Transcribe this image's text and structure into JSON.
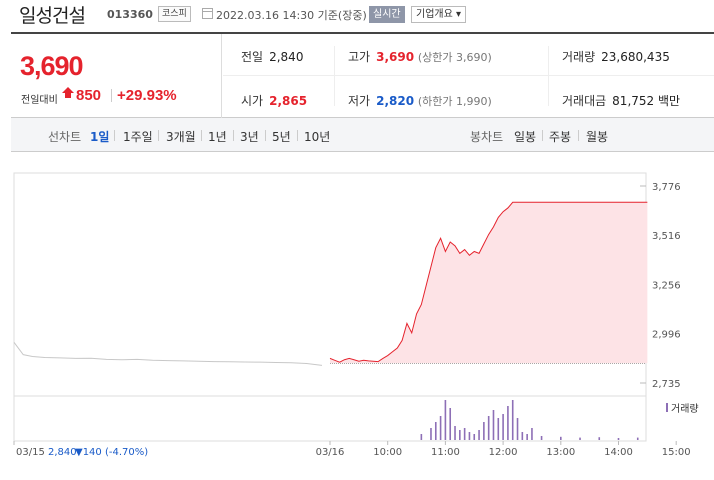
{
  "header": {
    "stock_name": "일성건설",
    "stock_code": "013360",
    "market": "코스피",
    "date_text": "2022.03.16 14:30 기준(장중)",
    "realtime_label": "실시간",
    "overview_label": "기업개요 ▾"
  },
  "summary": {
    "current_price": "3,690",
    "change_label": "전일대비",
    "change_value": "850",
    "change_percent": "+29.93%",
    "prev_close_label": "전일",
    "prev_close": "2,840",
    "open_label": "시가",
    "open": "2,865",
    "high_label": "고가",
    "high": "3,690",
    "upper_limit": "(상한가 3,690)",
    "low_label": "저가",
    "low": "2,820",
    "lower_limit": "(하한가 1,990)",
    "volume_label": "거래량",
    "volume": "23,680,435",
    "turnover_label": "거래대금",
    "turnover": "81,752",
    "turnover_unit": "백만"
  },
  "tabs": {
    "line_label": "선차트",
    "periods": [
      "1일",
      "1주일",
      "3개월",
      "1년",
      "3년",
      "5년",
      "10년"
    ],
    "active_period": "1일",
    "candle_label": "봉차트",
    "candles": [
      "일봉",
      "주봉",
      "월봉"
    ]
  },
  "chart_data": {
    "type": "line",
    "title": "",
    "xlabel": "",
    "ylabel": "",
    "prev_day": {
      "date": "03/15",
      "close": "2,840",
      "change": "▼140 (-4.70%)"
    },
    "y_ticks": [
      2735,
      2996,
      3256,
      3516,
      3776
    ],
    "y_tick_labels": [
      "2,735",
      "2,996",
      "3,256",
      "3,516",
      "3,776"
    ],
    "ylim": [
      2735,
      3776
    ],
    "x_ticks": [
      "03/15",
      "03/16",
      "10:00",
      "11:00",
      "12:00",
      "13:00",
      "14:00",
      "15:00"
    ],
    "baseline": 2840,
    "volume_legend": "거래량",
    "colors": {
      "up": "#e5232d",
      "fill": "#fde3e6",
      "prev": "#c8c8c8",
      "down": "#1a5bc8",
      "volume": "#8d6fb6"
    },
    "prev_day_series": [
      [
        0,
        2950
      ],
      [
        0.03,
        2885
      ],
      [
        0.06,
        2875
      ],
      [
        0.1,
        2870
      ],
      [
        0.15,
        2868
      ],
      [
        0.2,
        2865
      ],
      [
        0.25,
        2866
      ],
      [
        0.3,
        2860
      ],
      [
        0.35,
        2858
      ],
      [
        0.4,
        2860
      ],
      [
        0.45,
        2855
      ],
      [
        0.5,
        2853
      ],
      [
        0.55,
        2852
      ],
      [
        0.6,
        2850
      ],
      [
        0.65,
        2848
      ],
      [
        0.7,
        2847
      ],
      [
        0.75,
        2846
      ],
      [
        0.8,
        2845
      ],
      [
        0.85,
        2843
      ],
      [
        0.9,
        2842
      ],
      [
        0.95,
        2838
      ],
      [
        1.0,
        2828
      ]
    ],
    "intraday_series": [
      [
        "09:00",
        2865
      ],
      [
        "09:05",
        2855
      ],
      [
        "09:10",
        2845
      ],
      [
        "09:15",
        2858
      ],
      [
        "09:20",
        2865
      ],
      [
        "09:25",
        2858
      ],
      [
        "09:30",
        2850
      ],
      [
        "09:35",
        2855
      ],
      [
        "09:40",
        2852
      ],
      [
        "09:45",
        2850
      ],
      [
        "09:50",
        2848
      ],
      [
        "09:55",
        2865
      ],
      [
        "10:00",
        2880
      ],
      [
        "10:05",
        2900
      ],
      [
        "10:10",
        2920
      ],
      [
        "10:15",
        2960
      ],
      [
        "10:20",
        3050
      ],
      [
        "10:25",
        3000
      ],
      [
        "10:30",
        3100
      ],
      [
        "10:35",
        3150
      ],
      [
        "10:40",
        3250
      ],
      [
        "10:45",
        3350
      ],
      [
        "10:50",
        3450
      ],
      [
        "10:55",
        3500
      ],
      [
        "11:00",
        3430
      ],
      [
        "11:05",
        3480
      ],
      [
        "11:10",
        3460
      ],
      [
        "11:15",
        3420
      ],
      [
        "11:20",
        3440
      ],
      [
        "11:25",
        3410
      ],
      [
        "11:30",
        3430
      ],
      [
        "11:35",
        3420
      ],
      [
        "11:40",
        3470
      ],
      [
        "11:45",
        3520
      ],
      [
        "11:50",
        3560
      ],
      [
        "11:55",
        3610
      ],
      [
        "12:00",
        3640
      ],
      [
        "12:05",
        3660
      ],
      [
        "12:10",
        3690
      ],
      [
        "12:15",
        3690
      ],
      [
        "13:00",
        3690
      ],
      [
        "14:00",
        3690
      ],
      [
        "14:30",
        3690
      ]
    ],
    "volume_bars": [
      [
        "10:35",
        0.15
      ],
      [
        "10:45",
        0.3
      ],
      [
        "10:50",
        0.45
      ],
      [
        "10:55",
        0.6
      ],
      [
        "11:00",
        1.0
      ],
      [
        "11:05",
        0.8
      ],
      [
        "11:10",
        0.35
      ],
      [
        "11:15",
        0.25
      ],
      [
        "11:20",
        0.3
      ],
      [
        "11:25",
        0.2
      ],
      [
        "11:30",
        0.15
      ],
      [
        "11:35",
        0.25
      ],
      [
        "11:40",
        0.45
      ],
      [
        "11:45",
        0.6
      ],
      [
        "11:50",
        0.75
      ],
      [
        "11:55",
        0.55
      ],
      [
        "12:00",
        0.65
      ],
      [
        "12:05",
        0.85
      ],
      [
        "12:10",
        1.0
      ],
      [
        "12:15",
        0.55
      ],
      [
        "12:20",
        0.2
      ],
      [
        "12:25",
        0.15
      ],
      [
        "12:30",
        0.3
      ],
      [
        "12:40",
        0.1
      ],
      [
        "13:00",
        0.08
      ],
      [
        "13:20",
        0.06
      ],
      [
        "13:40",
        0.07
      ],
      [
        "14:00",
        0.05
      ],
      [
        "14:20",
        0.06
      ]
    ]
  }
}
